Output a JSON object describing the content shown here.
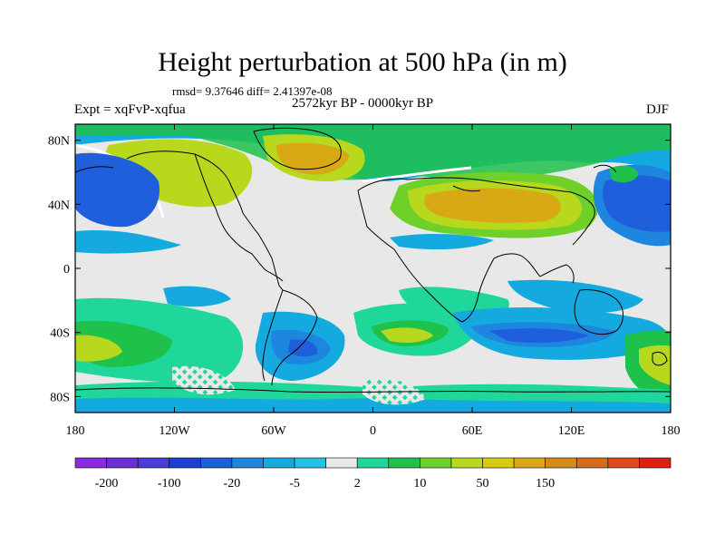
{
  "figure": {
    "title": "Height perturbation at 500 hPa (in m)",
    "stats": "rmsd= 9.37646 diff= 2.41397e-08",
    "period": "2572kyr BP - 0000kyr BP",
    "experiment": "Expt = xqFvP-xqfua",
    "season": "DJF"
  },
  "axes": {
    "y_ticks": [
      "80N",
      "40N",
      "0",
      "40S",
      "80S"
    ],
    "y_values": [
      80,
      40,
      0,
      -40,
      -80
    ],
    "x_ticks": [
      "180",
      "120W",
      "60W",
      "0",
      "60E",
      "120E",
      "180"
    ],
    "x_values": [
      -180,
      -120,
      -60,
      0,
      60,
      120,
      180
    ],
    "lon_range": [
      -180,
      180
    ],
    "lat_range": [
      -90,
      90
    ]
  },
  "colorbar": {
    "colors": [
      "#8a2be2",
      "#6b2fd6",
      "#4b3cd9",
      "#1e3fd6",
      "#1f5fdc",
      "#1f86e0",
      "#14a9df",
      "#22c3e3",
      "#e8e8e8",
      "#1fd79a",
      "#1ec14a",
      "#6fd02a",
      "#b8d81e",
      "#d8cc12",
      "#d8a915",
      "#d88a18",
      "#d86a1c",
      "#e0481c",
      "#e01f14"
    ],
    "labels": [
      "-200",
      "-100",
      "-20",
      "-5",
      "2",
      "10",
      "50",
      "150"
    ],
    "label_after_index": [
      0,
      2,
      4,
      6,
      8,
      10,
      12,
      14
    ]
  },
  "colors": {
    "background_field": "#e8e8e8",
    "coastline": "#000000"
  }
}
